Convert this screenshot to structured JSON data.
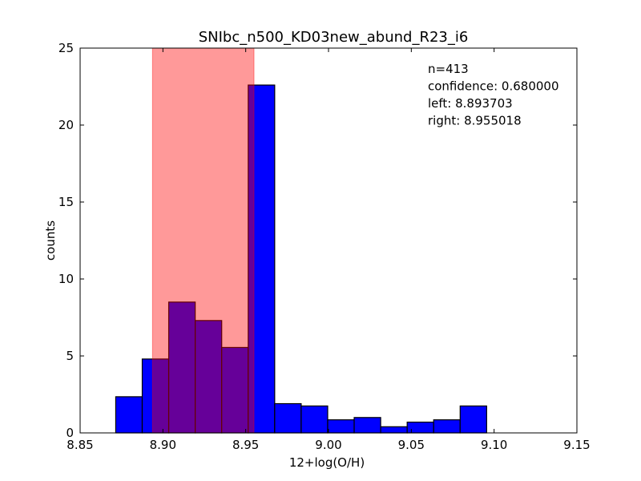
{
  "chart_data": {
    "type": "bar",
    "title": "SNIbc_n500_KD03new_abund_R23_i6",
    "xlabel": "12+log(O/H)",
    "ylabel": "counts",
    "xlim": [
      8.85,
      9.15
    ],
    "ylim": [
      0,
      25
    ],
    "xticks": [
      "8.85",
      "8.90",
      "8.95",
      "9.00",
      "9.05",
      "9.10",
      "9.15"
    ],
    "yticks": [
      "0",
      "5",
      "10",
      "15",
      "20",
      "25"
    ],
    "bar_color": "#0000ff",
    "bins": [
      {
        "x0": 8.8715,
        "x1": 8.8875,
        "value": 2.35
      },
      {
        "x0": 8.8875,
        "x1": 8.9035,
        "value": 4.8
      },
      {
        "x0": 8.9035,
        "x1": 8.9195,
        "value": 8.5
      },
      {
        "x0": 8.9195,
        "x1": 8.9355,
        "value": 7.3
      },
      {
        "x0": 8.9355,
        "x1": 8.9515,
        "value": 5.55
      },
      {
        "x0": 8.9515,
        "x1": 8.9675,
        "value": 22.6
      },
      {
        "x0": 8.9675,
        "x1": 8.9835,
        "value": 1.9
      },
      {
        "x0": 8.9835,
        "x1": 8.9995,
        "value": 1.75
      },
      {
        "x0": 8.9995,
        "x1": 9.0155,
        "value": 0.85
      },
      {
        "x0": 9.0155,
        "x1": 9.0315,
        "value": 1.0
      },
      {
        "x0": 9.0315,
        "x1": 9.0475,
        "value": 0.4
      },
      {
        "x0": 9.0475,
        "x1": 9.0635,
        "value": 0.7
      },
      {
        "x0": 9.0635,
        "x1": 9.0795,
        "value": 0.85
      },
      {
        "x0": 9.0795,
        "x1": 9.0955,
        "value": 1.75
      }
    ],
    "confidence_band": {
      "left": 8.893703,
      "right": 8.955018,
      "color": "#ff0000",
      "opacity": 0.4
    },
    "annotations": [
      "n=413",
      "confidence: 0.680000",
      "left: 8.893703",
      "right: 8.955018"
    ],
    "grid": false
  }
}
